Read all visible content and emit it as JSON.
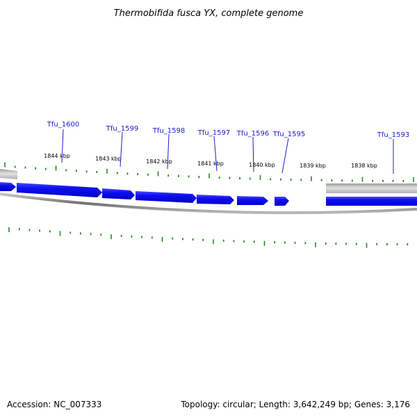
{
  "header": {
    "title": "Thermobifida fusca YX, complete genome"
  },
  "footer": {
    "accession": "Accession: NC_007333",
    "summary": "Topology: circular; Length: 3,642,249 bp; Genes: 3,176"
  },
  "colors": {
    "gene_fill": "#0a0aee",
    "gene_highlight": "#5a5aff",
    "backbone": "#808080",
    "gray_track": "#bdbdbd",
    "tick": "#1e8c1e",
    "label": "#1a1acc"
  },
  "ruler": {
    "labels": [
      "1844 kbp",
      "1843 kbp",
      "1842 kbp",
      "1841 kbp",
      "1840 kbp",
      "1839 kbp",
      "1838 kbp"
    ]
  },
  "genes": [
    {
      "id": "Tfu_1600"
    },
    {
      "id": "Tfu_1599"
    },
    {
      "id": "Tfu_1598"
    },
    {
      "id": "Tfu_1597"
    },
    {
      "id": "Tfu_1596"
    },
    {
      "id": "Tfu_1595"
    },
    {
      "id": "Tfu_1593"
    }
  ]
}
